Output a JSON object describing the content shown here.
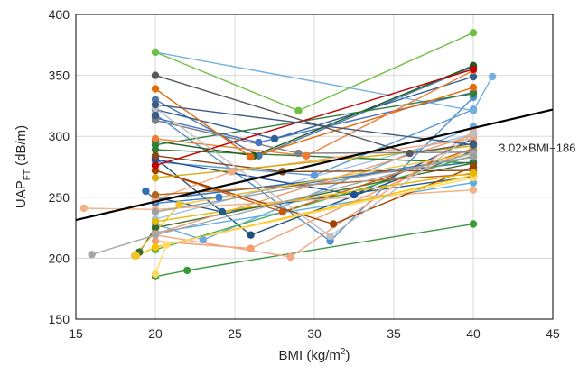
{
  "chart_data": {
    "type": "line",
    "xlabel": {
      "main": "BMI (kg/m",
      "sup": "2",
      "tail": ")"
    },
    "ylabel": {
      "main": "UAP",
      "sub": "FT",
      "tail": " (dB/m)"
    },
    "xlim": [
      15,
      45
    ],
    "ylim": [
      150,
      400
    ],
    "x_ticks": [
      "15",
      "20",
      "25",
      "30",
      "35",
      "40",
      "45"
    ],
    "y_ticks": [
      "150",
      "200",
      "250",
      "300",
      "350",
      "400"
    ],
    "grid": true,
    "legend": "none",
    "fit_line": {
      "slope": 3.02,
      "intercept": 186,
      "label": "3.02×BMI+186",
      "color": "#000000"
    },
    "series": [
      {
        "color": "#4e79a7",
        "points": [
          [
            20,
            330
          ],
          [
            26.5,
            284
          ],
          [
            40,
            357
          ]
        ]
      },
      {
        "color": "#2e5f94",
        "points": [
          [
            20,
            322
          ],
          [
            27.5,
            298
          ],
          [
            40,
            349
          ]
        ]
      },
      {
        "color": "#4e8fd0",
        "points": [
          [
            20,
            318
          ],
          [
            31,
            214
          ],
          [
            40,
            332
          ]
        ]
      },
      {
        "color": "#1f4e79",
        "points": [
          [
            20,
            282
          ],
          [
            26,
            219
          ],
          [
            40,
            288
          ]
        ]
      },
      {
        "color": "#5b9bd5",
        "points": [
          [
            20,
            279
          ],
          [
            30,
            268
          ],
          [
            40,
            322
          ]
        ]
      },
      {
        "color": "#6ea8dc",
        "points": [
          [
            20,
            228
          ],
          [
            23,
            215
          ],
          [
            40,
            308
          ]
        ]
      },
      {
        "color": "#4472c4",
        "points": [
          [
            20,
            315
          ],
          [
            26.5,
            295
          ],
          [
            40,
            336
          ]
        ]
      },
      {
        "color": "#74b0e0",
        "points": [
          [
            20,
            369
          ],
          [
            40,
            321
          ],
          [
            41.2,
            349
          ]
        ]
      },
      {
        "color": "#9dc3e6",
        "points": [
          [
            20,
            232
          ],
          [
            40,
            302
          ]
        ]
      },
      {
        "color": "#2f6fb0",
        "points": [
          [
            19.4,
            255
          ],
          [
            20,
            248
          ],
          [
            40,
            279
          ]
        ]
      },
      {
        "color": "#3a7dc9",
        "points": [
          [
            20,
            245
          ],
          [
            24,
            250
          ],
          [
            40,
            283
          ]
        ]
      },
      {
        "color": "#1f4e99",
        "points": [
          [
            20,
            281
          ],
          [
            32.5,
            252
          ],
          [
            40,
            298
          ]
        ]
      },
      {
        "color": "#5dade2",
        "points": [
          [
            20,
            221
          ],
          [
            40,
            262
          ]
        ]
      },
      {
        "color": "#1f5c8c",
        "points": [
          [
            20,
            250
          ],
          [
            24.2,
            238
          ],
          [
            40,
            267
          ]
        ]
      },
      {
        "color": "#6fbf44",
        "points": [
          [
            20,
            369
          ],
          [
            29,
            321
          ],
          [
            40,
            385
          ]
        ]
      },
      {
        "color": "#3a9a3a",
        "points": [
          [
            20,
            185
          ],
          [
            22,
            190
          ],
          [
            40,
            228
          ]
        ]
      },
      {
        "color": "#2e7d32",
        "points": [
          [
            20,
            289
          ],
          [
            40,
            278
          ]
        ]
      },
      {
        "color": "#4caf50",
        "points": [
          [
            20,
            207
          ],
          [
            40,
            284
          ]
        ]
      },
      {
        "color": "#1b5e20",
        "points": [
          [
            20,
            296
          ],
          [
            26.2,
            284
          ],
          [
            40,
            358
          ]
        ]
      },
      {
        "color": "#376b2c",
        "points": [
          [
            19,
            205
          ],
          [
            20,
            225
          ],
          [
            40,
            278
          ]
        ]
      },
      {
        "color": "#2f7d3a",
        "points": [
          [
            20,
            293
          ],
          [
            40,
            335
          ]
        ]
      },
      {
        "color": "#e46c0a",
        "points": [
          [
            20,
            339
          ],
          [
            26,
            283
          ],
          [
            40,
            340
          ]
        ]
      },
      {
        "color": "#ed7d31",
        "points": [
          [
            20,
            298
          ],
          [
            29.5,
            284
          ],
          [
            40,
            354
          ]
        ]
      },
      {
        "color": "#c55a11",
        "points": [
          [
            20,
            272
          ],
          [
            28,
            238
          ],
          [
            40,
            290
          ]
        ]
      },
      {
        "color": "#f4b183",
        "points": [
          [
            15.5,
            241
          ],
          [
            20,
            240
          ],
          [
            40,
            256
          ]
        ]
      },
      {
        "color": "#f8a77a",
        "points": [
          [
            20,
            248
          ],
          [
            24.8,
            271
          ],
          [
            40,
            298
          ]
        ]
      },
      {
        "color": "#f0a070",
        "points": [
          [
            20,
            214
          ],
          [
            26,
            208
          ],
          [
            40,
            291
          ]
        ]
      },
      {
        "color": "#f4a582",
        "points": [
          [
            20,
            219
          ],
          [
            28.5,
            201
          ],
          [
            40,
            304
          ]
        ]
      },
      {
        "color": "#e69f74",
        "points": [
          [
            20,
            220
          ],
          [
            40,
            301
          ]
        ]
      },
      {
        "color": "#a04000",
        "points": [
          [
            20,
            272
          ],
          [
            31.2,
            228
          ],
          [
            40,
            275
          ]
        ]
      },
      {
        "color": "#b5651d",
        "points": [
          [
            20,
            252
          ],
          [
            40,
            269
          ]
        ]
      },
      {
        "color": "#8b4513",
        "points": [
          [
            20,
            284
          ],
          [
            28,
            271
          ],
          [
            40,
            272
          ]
        ]
      },
      {
        "color": "#c00000",
        "points": [
          [
            20,
            276
          ],
          [
            40,
            355
          ]
        ]
      },
      {
        "color": "#d4ac0d",
        "points": [
          [
            20,
            266
          ],
          [
            40,
            292
          ]
        ]
      },
      {
        "color": "#ffc000",
        "points": [
          [
            18.8,
            202
          ],
          [
            20,
            209
          ],
          [
            40,
            268
          ]
        ]
      },
      {
        "color": "#ffd966",
        "points": [
          [
            20,
            187
          ],
          [
            20.7,
            211
          ],
          [
            40,
            266
          ]
        ]
      },
      {
        "color": "#f1c232",
        "points": [
          [
            18.7,
            202
          ],
          [
            21.5,
            244
          ],
          [
            40,
            286
          ]
        ]
      },
      {
        "color": "#e6b800",
        "points": [
          [
            20,
            230
          ],
          [
            40,
            270
          ]
        ]
      },
      {
        "color": "#595959",
        "points": [
          [
            20,
            350
          ],
          [
            36,
            286
          ],
          [
            40,
            294
          ]
        ]
      },
      {
        "color": "#7f7f7f",
        "points": [
          [
            20,
            313
          ],
          [
            29,
            286
          ],
          [
            40,
            287
          ]
        ]
      },
      {
        "color": "#a6a6a6",
        "points": [
          [
            16,
            203
          ],
          [
            20,
            219
          ],
          [
            40,
            286
          ]
        ]
      },
      {
        "color": "#bfbfbf",
        "points": [
          [
            20,
            323
          ],
          [
            31,
            218
          ],
          [
            40,
            302
          ]
        ]
      },
      {
        "color": "#9e9e9e",
        "points": [
          [
            20,
            238
          ],
          [
            40,
            283
          ]
        ]
      },
      {
        "color": "#3d5a80",
        "points": [
          [
            20,
            317
          ],
          [
            20,
            326
          ],
          [
            40,
            293
          ]
        ]
      }
    ]
  }
}
